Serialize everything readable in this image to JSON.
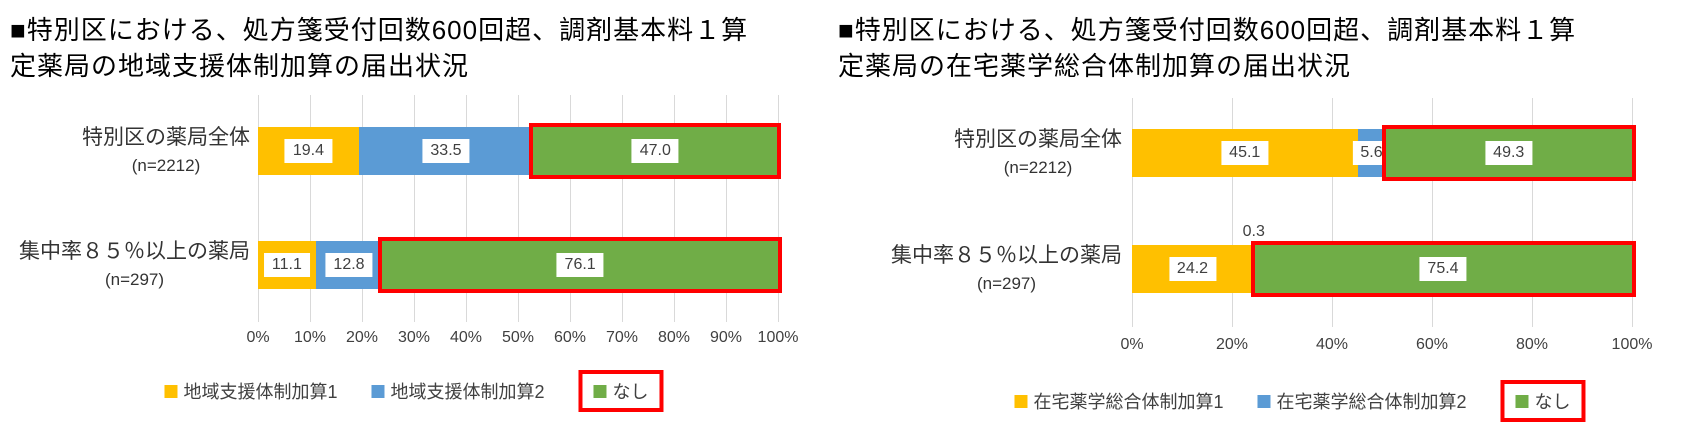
{
  "page": {
    "background": "#ffffff"
  },
  "chart_data": [
    {
      "type": "bar",
      "orientation": "horizontal-stacked",
      "title": "■特別区における、処方箋受付回数600回超、調剤基本料１算定薬局の地域支援体制加算の届出状況",
      "categories": [
        "特別区の薬局全体",
        "集中率８５％以上の薬局"
      ],
      "category_notes": [
        "(n=2212)",
        "(n=297)"
      ],
      "series": [
        {
          "name": "地域支援体制加算1",
          "color": "#FFC000",
          "values": [
            19.4,
            11.1
          ],
          "labels": [
            "19.4",
            "11.1"
          ],
          "highlighted": false
        },
        {
          "name": "地域支援体制加算2",
          "color": "#5B9BD5",
          "values": [
            33.5,
            12.8
          ],
          "labels": [
            "33.5",
            "12.8"
          ],
          "highlighted": false
        },
        {
          "name": "なし",
          "color": "#70AD47",
          "values": [
            47.0,
            76.1
          ],
          "labels": [
            "47.0",
            "76.1"
          ],
          "highlighted": true
        }
      ],
      "x_ticks": [
        "0%",
        "10%",
        "20%",
        "30%",
        "40%",
        "50%",
        "60%",
        "70%",
        "80%",
        "90%",
        "100%"
      ],
      "xlim": [
        0,
        100
      ],
      "grid": true,
      "legend_position": "bottom",
      "highlight_color": "#FF0000",
      "grid_color": "#D9D9D9"
    },
    {
      "type": "bar",
      "orientation": "horizontal-stacked",
      "title": "■特別区における、処方箋受付回数600回超、調剤基本料１算定薬局の在宅薬学総合体制加算の届出状況",
      "categories": [
        "特別区の薬局全体",
        "集中率８５％以上の薬局"
      ],
      "category_notes": [
        "(n=2212)",
        "(n=297)"
      ],
      "series": [
        {
          "name": "在宅薬学総合体制加算1",
          "color": "#FFC000",
          "values": [
            45.1,
            24.2
          ],
          "labels": [
            "45.1",
            "24.2"
          ],
          "highlighted": false
        },
        {
          "name": "在宅薬学総合体制加算2",
          "color": "#5B9BD5",
          "values": [
            5.6,
            0.3
          ],
          "labels": [
            "5.6",
            "0.3"
          ],
          "highlighted": false
        },
        {
          "name": "なし",
          "color": "#70AD47",
          "values": [
            49.3,
            75.4
          ],
          "labels": [
            "49.3",
            "75.4"
          ],
          "highlighted": true
        }
      ],
      "x_ticks": [
        "0%",
        "20%",
        "40%",
        "60%",
        "80%",
        "100%"
      ],
      "xlim": [
        0,
        100
      ],
      "grid": true,
      "legend_position": "bottom",
      "highlight_color": "#FF0000",
      "grid_color": "#D9D9D9"
    }
  ]
}
